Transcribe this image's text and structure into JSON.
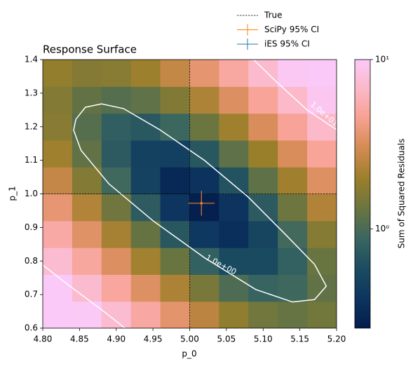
{
  "chart_data": {
    "type": "heatmap",
    "title": "Response Surface",
    "x_label": "p_0",
    "y_label": "p_1",
    "xlim": [
      4.8,
      5.2
    ],
    "ylim": [
      0.6,
      1.4
    ],
    "xticks": [
      {
        "value": 4.8,
        "label": "4.80"
      },
      {
        "value": 4.85,
        "label": "4.85"
      },
      {
        "value": 4.9,
        "label": "4.90"
      },
      {
        "value": 4.95,
        "label": "4.95"
      },
      {
        "value": 5.0,
        "label": "5.00"
      },
      {
        "value": 5.05,
        "label": "5.05"
      },
      {
        "value": 5.1,
        "label": "5.10"
      },
      {
        "value": 5.15,
        "label": "5.15"
      },
      {
        "value": 5.2,
        "label": "5.20"
      }
    ],
    "yticks": [
      0.6,
      0.7,
      0.8,
      0.9,
      {
        "value": 1.0,
        "label": "1.0"
      },
      1.1,
      1.2,
      1.3,
      1.4
    ],
    "x": [
      4.82,
      4.86,
      4.9,
      4.94,
      4.98,
      5.02,
      5.06,
      5.1,
      5.14,
      5.18
    ],
    "y": [
      0.64,
      0.72,
      0.8,
      0.88,
      0.96,
      1.04,
      1.12,
      1.2,
      1.28,
      1.36
    ],
    "z": [
      [
        13.6,
        9.95,
        7.18,
        5.1,
        3.58,
        2.5,
        1.8,
        1.4,
        1.27,
        1.41
      ],
      [
        9.98,
        7.1,
        4.95,
        3.35,
        2.23,
        1.47,
        1.03,
        0.84,
        0.91,
        1.22
      ],
      [
        7.24,
        4.97,
        3.31,
        2.1,
        1.3,
        0.8,
        0.56,
        0.56,
        0.8,
        1.3
      ],
      [
        5.2,
        3.42,
        2.15,
        1.26,
        0.7,
        0.41,
        0.35,
        0.52,
        0.94,
        1.65
      ],
      [
        3.72,
        2.34,
        1.38,
        0.74,
        0.39,
        0.27,
        0.38,
        0.73,
        1.35,
        2.31
      ],
      [
        2.69,
        1.62,
        0.92,
        0.49,
        0.31,
        0.37,
        0.65,
        1.2,
        2.07,
        3.33
      ],
      [
        2.04,
        1.22,
        0.73,
        0.48,
        0.47,
        0.7,
        1.19,
        1.98,
        3.15,
        4.79
      ],
      [
        1.69,
        1.1,
        0.78,
        0.71,
        0.89,
        1.32,
        2.05,
        3.15,
        4.7,
        6.82
      ],
      [
        1.63,
        1.23,
        1.1,
        1.21,
        1.59,
        2.27,
        3.31,
        4.79,
        6.83,
        9.54
      ],
      [
        1.86,
        1.64,
        1.7,
        2.02,
        2.66,
        3.65,
        5.08,
        7.05,
        9.68,
        13.1
      ]
    ],
    "colormap": [
      "#041e4d",
      "#0d3560",
      "#1b4c60",
      "#3a6660",
      "#6a7540",
      "#9a7f2b",
      "#d28a50",
      "#f7a08f",
      "#fbb8c7",
      "#fbc9f7"
    ],
    "colorbar": {
      "label": "Sum of Squared Residuals",
      "log": true,
      "lim": [
        0.26,
        10
      ],
      "ticks": [
        {
          "value": 1,
          "label": "10⁰"
        },
        {
          "value": 10,
          "label": "10¹"
        }
      ]
    },
    "contours": [
      {
        "level": 1,
        "label": "1.0e+00",
        "color": "#ffffff",
        "x": [
          4.845,
          4.858,
          4.88,
          4.91,
          4.96,
          5.02,
          5.08,
          5.13,
          5.17,
          5.186,
          5.17,
          5.14,
          5.09,
          5.02,
          4.95,
          4.89,
          4.852,
          4.842,
          4.845
        ],
        "y": [
          1.222,
          1.258,
          1.268,
          1.254,
          1.19,
          1.1,
          0.99,
          0.88,
          0.79,
          0.725,
          0.685,
          0.678,
          0.715,
          0.81,
          0.92,
          1.03,
          1.13,
          1.19,
          1.222
        ]
      },
      {
        "level": 10,
        "label": "1.0e+01",
        "color": "#ffffff",
        "x": [
          4.8,
          4.84,
          4.88,
          4.912,
          null,
          5.087,
          5.12,
          5.16,
          5.2
        ],
        "y": [
          0.788,
          0.72,
          0.655,
          0.6,
          null,
          1.4,
          1.33,
          1.25,
          1.191
        ]
      }
    ],
    "reference": {
      "name": "True",
      "x": 5.0,
      "y": 1.0,
      "color": "#000000"
    },
    "series": [
      {
        "name": "SciPy 95% CI",
        "color": "#ff7f0e",
        "x": 5.016,
        "y": 0.972,
        "xerr": 0.018,
        "yerr": 0.037
      },
      {
        "name": "iES 95% CI",
        "color": "#1f77b4",
        "x": 5.016,
        "y": 0.972,
        "xerr": 0.017,
        "yerr": 0.035
      }
    ]
  }
}
